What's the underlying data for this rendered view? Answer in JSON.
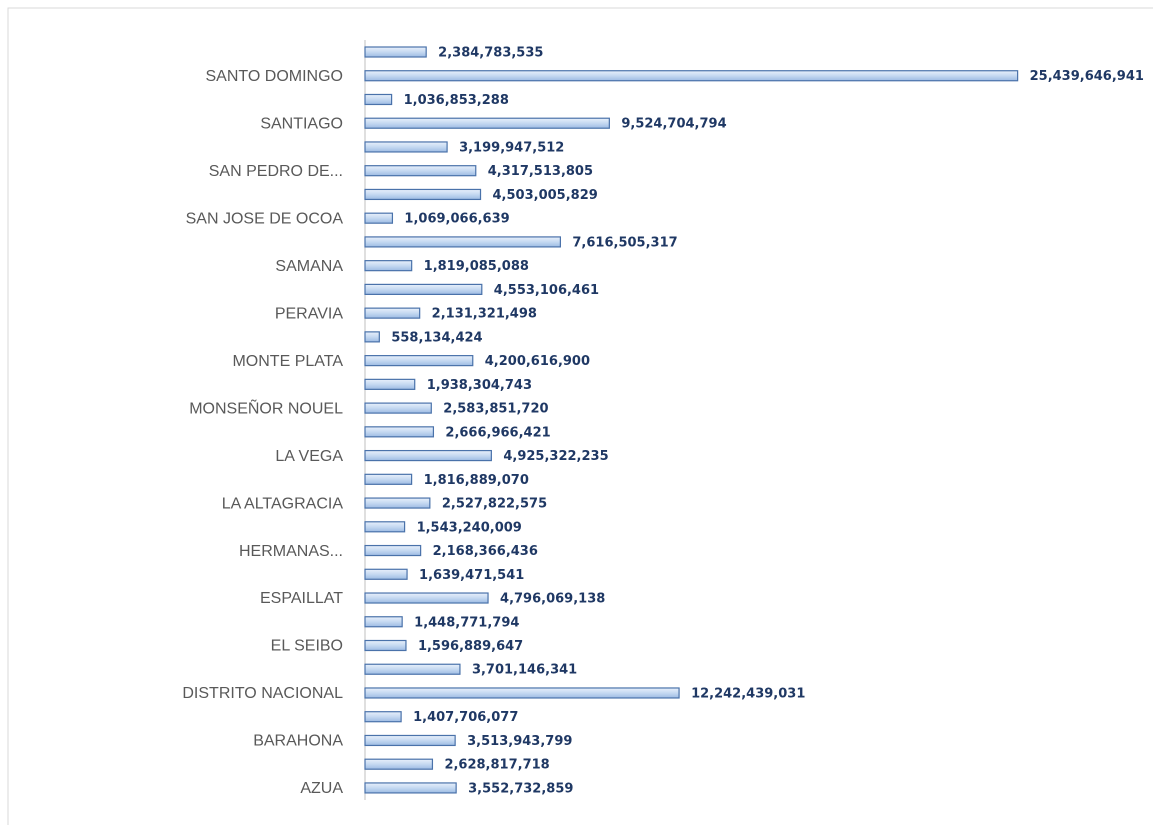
{
  "chart_data": {
    "type": "bar",
    "orientation": "horizontal",
    "color": "#c5d9f1",
    "categories": [
      null,
      "SANTO DOMINGO",
      null,
      "SANTIAGO",
      null,
      "SAN PEDRO DE...",
      null,
      "SAN JOSE DE OCOA",
      null,
      "SAMANA",
      null,
      "PERAVIA",
      null,
      "MONTE PLATA",
      null,
      "MONSEÑOR NOUEL",
      null,
      "LA VEGA",
      null,
      "LA ALTAGRACIA",
      null,
      "HERMANAS...",
      null,
      "ESPAILLAT",
      null,
      "EL SEIBO",
      null,
      "DISTRITO NACIONAL",
      null,
      "BARAHONA",
      null,
      "AZUA"
    ],
    "values": [
      2384783535,
      25439646941,
      1036853288,
      9524704794,
      3199947512,
      4317513805,
      4503005829,
      1069066639,
      7616505317,
      1819085088,
      4553106461,
      2131321498,
      558134424,
      4200616900,
      1938304743,
      2583851720,
      2666966421,
      4925322235,
      1816889070,
      2527822575,
      1543240009,
      2168366436,
      1639471541,
      4796069138,
      1448771794,
      1596889647,
      3701146341,
      12242439031,
      1407706077,
      3513943799,
      2628817718,
      3552732859
    ],
    "value_labels": [
      "2,384,783,535",
      "25,439,646,941",
      "1,036,853,288",
      "9,524,704,794",
      "3,199,947,512",
      "4,317,513,805",
      "4,503,005,829",
      "1,069,066,639",
      "7,616,505,317",
      "1,819,085,088",
      "4,553,106,461",
      "2,131,321,498",
      "558,134,424",
      "4,200,616,900",
      "1,938,304,743",
      "2,583,851,720",
      "2,666,966,421",
      "4,925,322,235",
      "1,816,889,070",
      "2,527,822,575",
      "1,543,240,009",
      "2,168,366,436",
      "1,639,471,541",
      "4,796,069,138",
      "1,448,771,794",
      "1,596,889,647",
      "3,701,146,341",
      "12,242,439,031",
      "1,407,706,077",
      "3,513,943,799",
      "2,628,817,718",
      "3,552,732,859"
    ],
    "xlim": [
      0,
      26000000000
    ]
  }
}
